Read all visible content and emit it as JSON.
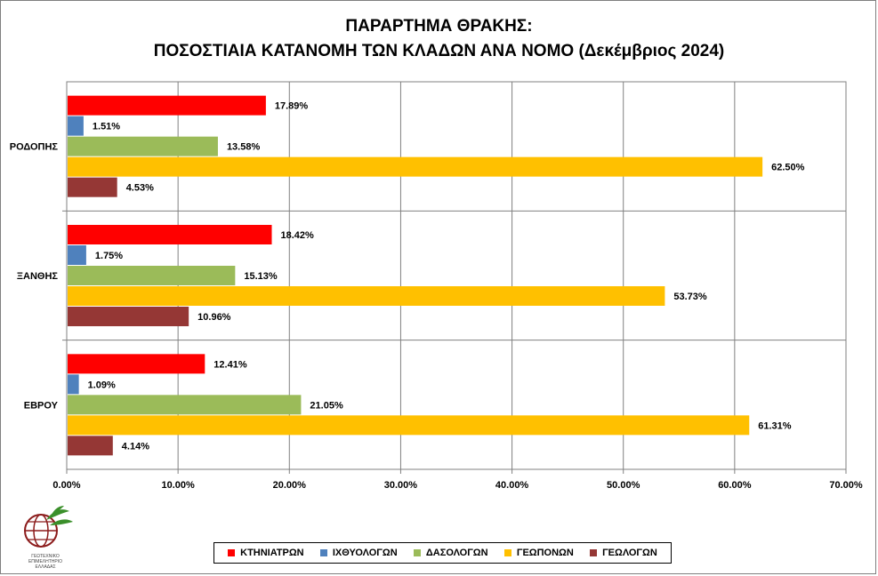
{
  "title_line1": "ΠΑΡΑΡΤΗΜΑ ΘΡΑΚΗΣ:",
  "title_line2": "ΠΟΣΟΣΤΙΑΙΑ ΚΑΤΑΝΟΜΗ ΤΩΝ ΚΛΑΔΩΝ ΑΝΑ ΝΟΜΟ (Δεκέμβριος 2024)",
  "logo": {
    "text": "ΓΕΩΤΕΧΝΙΚΟ ΕΠΙΜΕΛΗΤΗΡΙΟ ΕΛΛΑΔΑΣ",
    "colors": {
      "globe": "#8b1a1a",
      "leaf": "#3a8f2a"
    }
  },
  "chart_data": {
    "type": "bar",
    "orientation": "horizontal",
    "categories": [
      "ΡΟΔΟΠΗΣ",
      "ΞΑΝΘΗΣ",
      "ΕΒΡΟΥ"
    ],
    "series": [
      {
        "name": "ΚΤΗΝΙΑΤΡΩΝ",
        "color": "#ff0000",
        "values": [
          17.89,
          18.42,
          12.41
        ],
        "labels": [
          "17.89%",
          "18.42%",
          "12.41%"
        ]
      },
      {
        "name": "ΙΧΘΥΟΛΟΓΩΝ",
        "color": "#4f81bd",
        "values": [
          1.51,
          1.75,
          1.09
        ],
        "labels": [
          "1.51%",
          "1.75%",
          "1.09%"
        ]
      },
      {
        "name": "ΔΑΣΟΛΟΓΩΝ",
        "color": "#9bbb59",
        "values": [
          13.58,
          15.13,
          21.05
        ],
        "labels": [
          "13.58%",
          "15.13%",
          "21.05%"
        ]
      },
      {
        "name": "ΓΕΩΠΟΝΩΝ",
        "color": "#ffc000",
        "values": [
          62.5,
          53.73,
          61.31
        ],
        "labels": [
          "62.50%",
          "53.73%",
          "61.31%"
        ]
      },
      {
        "name": "ΓΕΩΛΟΓΩΝ",
        "color": "#953735",
        "values": [
          4.53,
          10.96,
          4.14
        ],
        "labels": [
          "4.53%",
          "10.96%",
          "4.14%"
        ]
      }
    ],
    "xlim": [
      0,
      70
    ],
    "xticks": [
      0,
      10,
      20,
      30,
      40,
      50,
      60,
      70
    ],
    "xtick_labels": [
      "0.00%",
      "10.00%",
      "20.00%",
      "30.00%",
      "40.00%",
      "50.00%",
      "60.00%",
      "70.00%"
    ],
    "grid": true,
    "legend_position": "bottom"
  }
}
